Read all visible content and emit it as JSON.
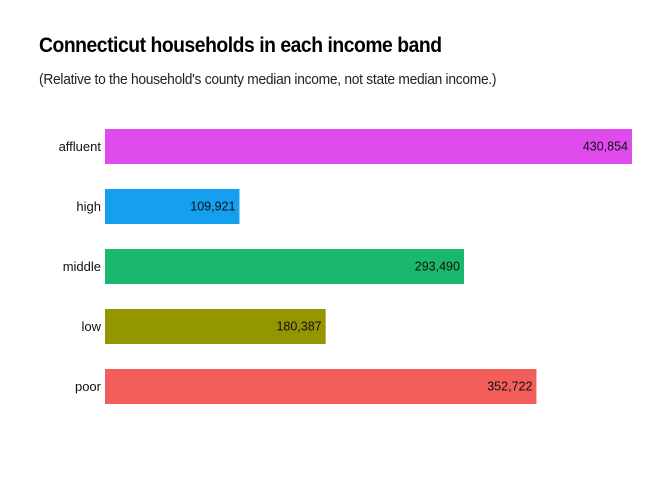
{
  "chart_data": {
    "type": "bar",
    "orientation": "horizontal",
    "title": "Connecticut households in each income band",
    "subtitle": "(Relative to the household's county median income, not state median income.)",
    "xlabel": "",
    "ylabel": "",
    "grid": false,
    "legend": "none",
    "categories": [
      "affluent",
      "high",
      "middle",
      "low",
      "poor"
    ],
    "values": [
      430854,
      109921,
      293490,
      180387,
      352722
    ],
    "value_labels": [
      "430,854",
      "109,921",
      "293,490",
      "180,387",
      "352,722"
    ],
    "colors": [
      "#E04BEE",
      "#149FEF",
      "#1AB86C",
      "#949600",
      "#F35E5A"
    ],
    "xlim": [
      0,
      430854
    ]
  }
}
